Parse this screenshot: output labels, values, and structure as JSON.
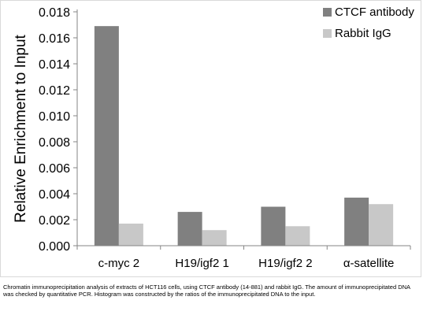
{
  "chart_data": {
    "type": "bar",
    "categories": [
      "c-myc 2",
      "H19/igf2 1",
      "H19/igf2 2",
      "α-satellite"
    ],
    "series": [
      {
        "name": "CTCF antibody",
        "values": [
          0.0169,
          0.0026,
          0.003,
          0.0037
        ],
        "color": "#808080"
      },
      {
        "name": "Rabbit IgG",
        "values": [
          0.0017,
          0.0012,
          0.0015,
          0.0032
        ],
        "color": "#c8c8c8"
      }
    ],
    "ylabel": "Relative Enrichment to Input",
    "ylim": [
      0,
      0.018
    ],
    "yticks": [
      "0.000",
      "0.002",
      "0.004",
      "0.006",
      "0.008",
      "0.010",
      "0.012",
      "0.014",
      "0.016",
      "0.018"
    ],
    "grid": false,
    "legend": "top-right"
  },
  "caption": "Chromatin immunoprecipitation analysis of extracts of HCT116 cells, using CTCF antibody (14-881) and rabbit IgG. The amount of immunoprecipitated DNA was checked by quantitative PCR. Histogram was constructed by the ratios of the immunoprecipitated DNA to the input."
}
